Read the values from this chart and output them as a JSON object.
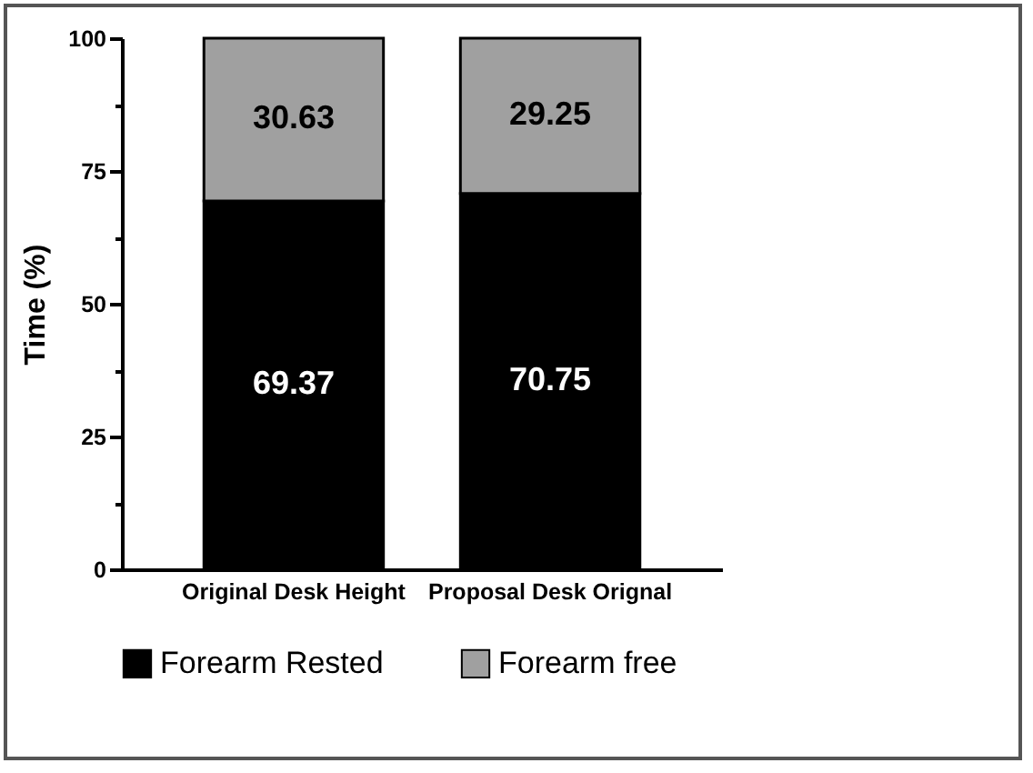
{
  "chart_data": {
    "type": "bar",
    "stacked": true,
    "ylabel": "Time (%)",
    "categories": [
      "Original Desk Height",
      "Proposal Desk Orignal"
    ],
    "series": [
      {
        "name": "Forearm Rested",
        "color": "#000000",
        "values": [
          69.37,
          70.75
        ]
      },
      {
        "name": "Forearm free",
        "color": "#a0a0a0",
        "values": [
          30.63,
          29.25
        ]
      }
    ],
    "ylim": [
      0,
      100
    ],
    "yticks": [
      0,
      {
        "value": 12.5,
        "label": null
      },
      25,
      {
        "value": 37.5,
        "label": null
      },
      50,
      {
        "value": 62.5,
        "label": null
      },
      75,
      {
        "value": 87.5,
        "label": null
      },
      100
    ],
    "data_labels": true,
    "legend": "bottom"
  }
}
